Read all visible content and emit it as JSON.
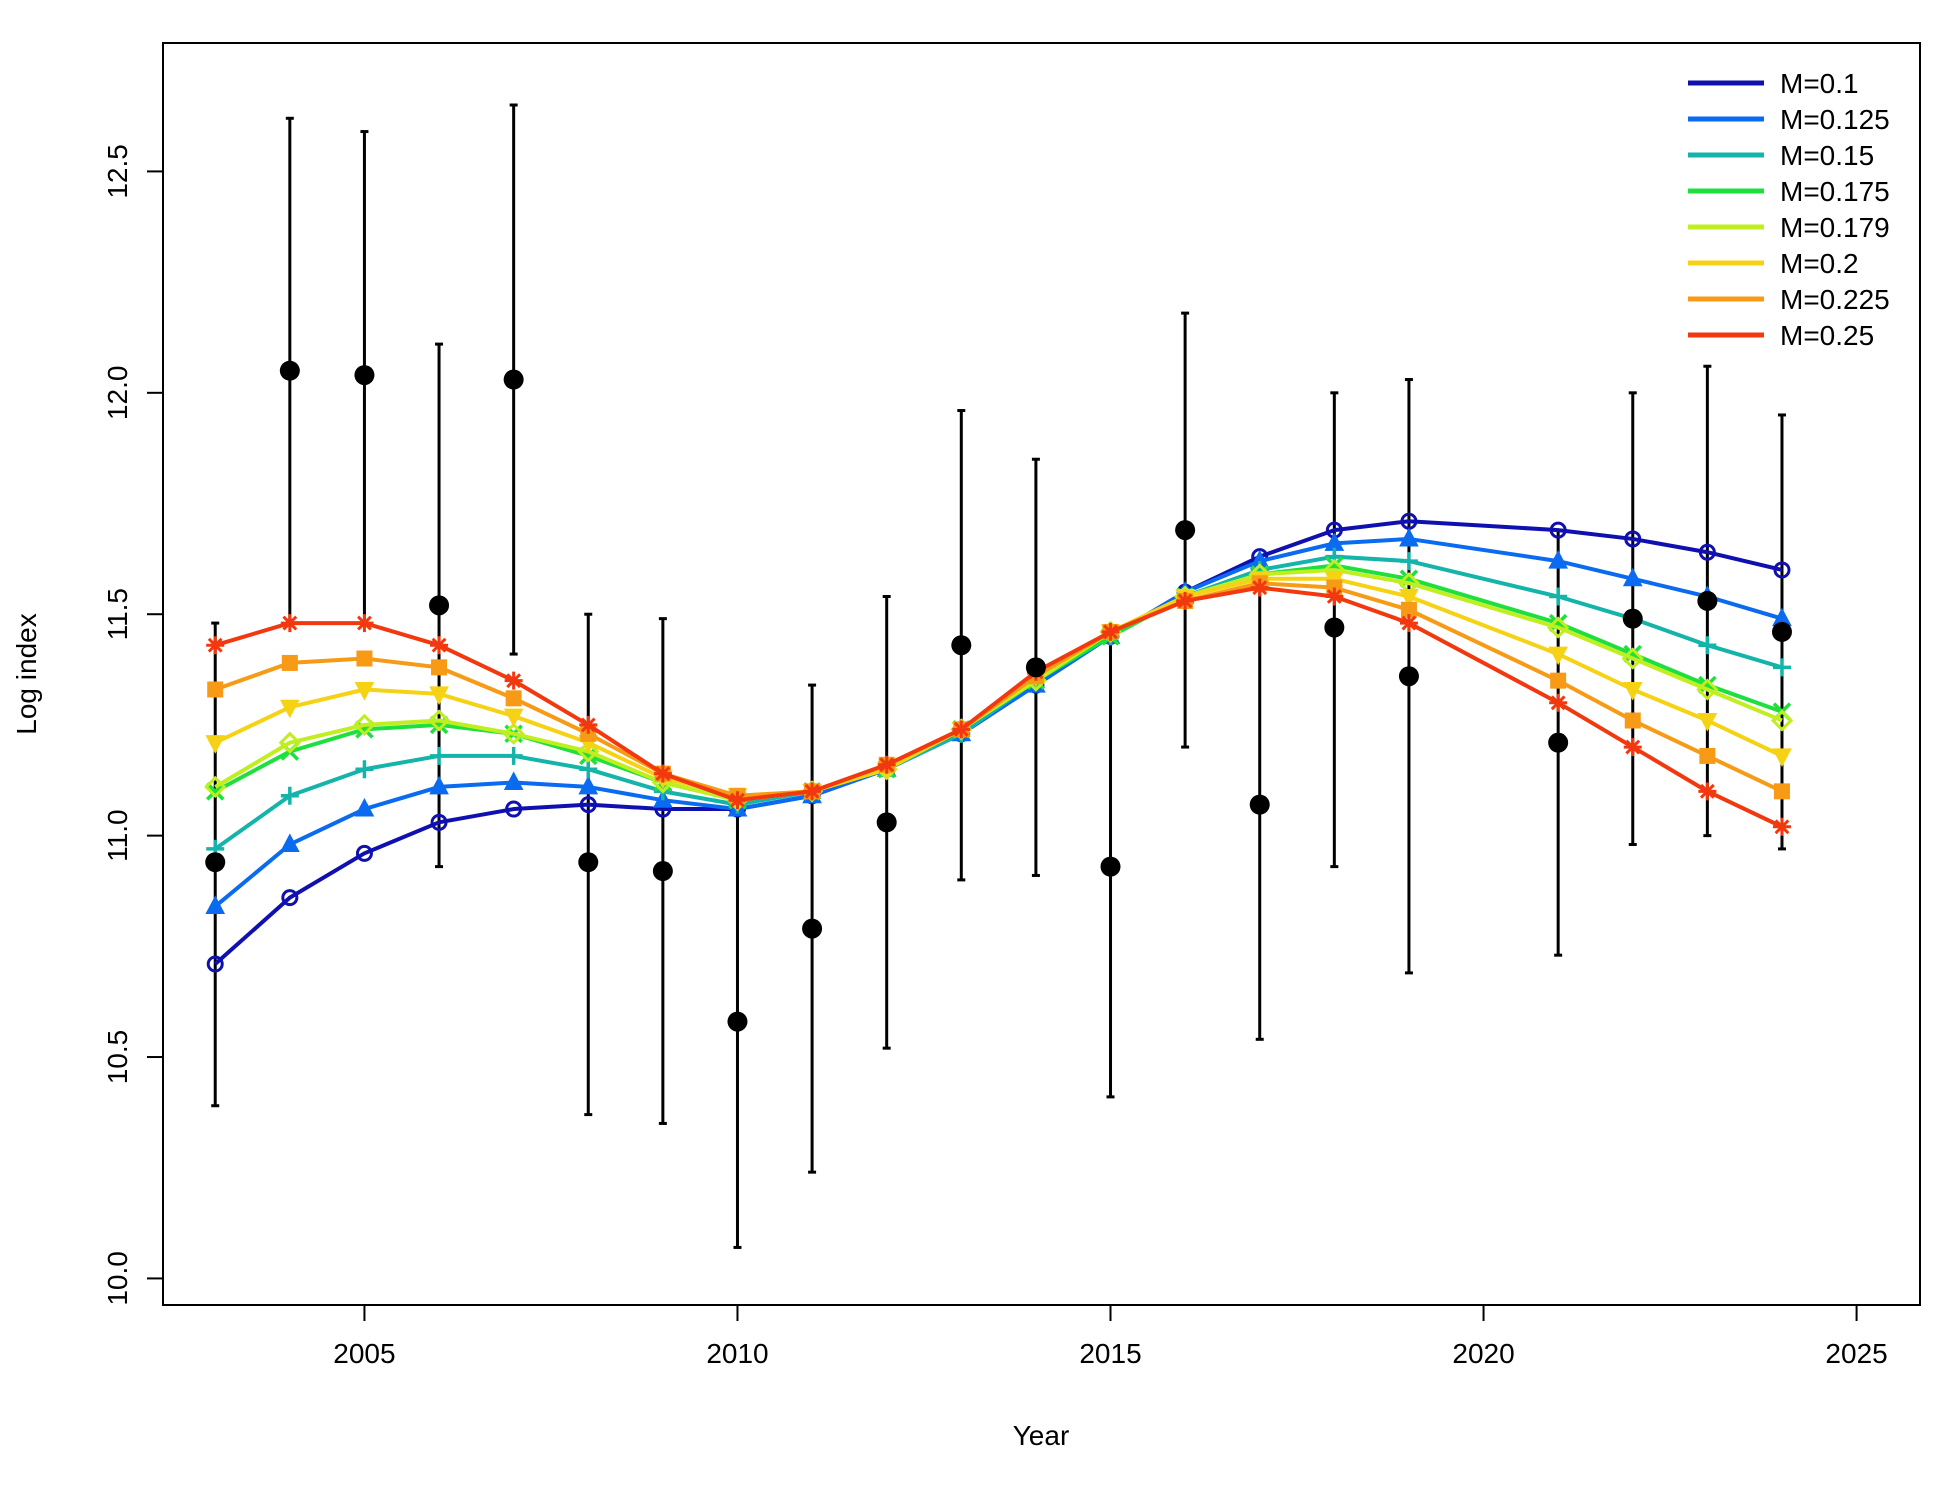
{
  "chart_data": {
    "type": "line",
    "title": "",
    "xlabel": "Year",
    "ylabel": "Log index",
    "xlim": [
      2002.3,
      2025.85
    ],
    "ylim": [
      9.94,
      12.79
    ],
    "xticks": [
      2005,
      2010,
      2015,
      2020,
      2025
    ],
    "yticks": [
      10.0,
      10.5,
      11.0,
      11.5,
      12.0,
      12.5
    ],
    "grid": false,
    "legend_position": "top-right",
    "x": [
      2003,
      2004,
      2005,
      2006,
      2007,
      2008,
      2009,
      2010,
      2011,
      2012,
      2013,
      2014,
      2015,
      2016,
      2017,
      2018,
      2019,
      2021,
      2022,
      2023,
      2024
    ],
    "observed": {
      "values": [
        10.94,
        12.05,
        12.04,
        11.52,
        12.03,
        10.94,
        10.92,
        10.58,
        10.79,
        11.03,
        11.43,
        11.38,
        10.93,
        11.69,
        11.07,
        11.47,
        11.36,
        11.21,
        11.49,
        11.53,
        11.46
      ],
      "lower": [
        10.39,
        11.48,
        11.48,
        10.93,
        11.41,
        10.37,
        10.35,
        10.07,
        10.24,
        10.52,
        10.9,
        10.91,
        10.41,
        11.2,
        10.54,
        10.93,
        10.69,
        10.73,
        10.98,
        11.0,
        10.97
      ],
      "upper": [
        11.48,
        12.62,
        12.59,
        12.11,
        12.65,
        11.5,
        11.49,
        11.09,
        11.34,
        11.54,
        11.96,
        11.85,
        11.44,
        12.18,
        11.6,
        12.0,
        12.03,
        11.69,
        12.0,
        12.06,
        11.95
      ]
    },
    "series": [
      {
        "name": "M=0.1",
        "color": "#1010b0",
        "marker": "circle-open",
        "values": [
          10.71,
          10.86,
          10.96,
          11.03,
          11.06,
          11.07,
          11.06,
          11.06,
          11.09,
          11.15,
          11.23,
          11.34,
          11.45,
          11.55,
          11.63,
          11.69,
          11.71,
          11.69,
          11.67,
          11.64,
          11.6
        ]
      },
      {
        "name": "M=0.125",
        "color": "#0a6af0",
        "marker": "triangle-up",
        "values": [
          10.84,
          10.98,
          11.06,
          11.11,
          11.12,
          11.11,
          11.08,
          11.06,
          11.09,
          11.15,
          11.23,
          11.34,
          11.45,
          11.55,
          11.62,
          11.66,
          11.67,
          11.62,
          11.58,
          11.54,
          11.49
        ]
      },
      {
        "name": "M=0.15",
        "color": "#14b4aa",
        "marker": "plus",
        "values": [
          10.97,
          11.09,
          11.15,
          11.18,
          11.18,
          11.15,
          11.1,
          11.07,
          11.1,
          11.15,
          11.23,
          11.35,
          11.45,
          11.54,
          11.6,
          11.63,
          11.62,
          11.54,
          11.49,
          11.43,
          11.38
        ]
      },
      {
        "name": "M=0.175",
        "color": "#1ee03c",
        "marker": "x",
        "values": [
          11.1,
          11.19,
          11.24,
          11.25,
          11.23,
          11.18,
          11.12,
          11.08,
          11.1,
          11.15,
          11.24,
          11.35,
          11.45,
          11.54,
          11.59,
          11.61,
          11.58,
          11.48,
          11.41,
          11.34,
          11.28
        ]
      },
      {
        "name": "M=0.179",
        "color": "#c0ee1e",
        "marker": "diamond-open",
        "values": [
          11.11,
          11.21,
          11.25,
          11.26,
          11.23,
          11.19,
          11.12,
          11.08,
          11.1,
          11.15,
          11.24,
          11.35,
          11.46,
          11.54,
          11.59,
          11.6,
          11.57,
          11.47,
          11.4,
          11.33,
          11.26
        ]
      },
      {
        "name": "M=0.2",
        "color": "#f5d214",
        "marker": "triangle-down",
        "values": [
          11.21,
          11.29,
          11.33,
          11.32,
          11.27,
          11.21,
          11.13,
          11.09,
          11.1,
          11.15,
          11.24,
          11.36,
          11.46,
          11.54,
          11.58,
          11.58,
          11.54,
          11.41,
          11.33,
          11.26,
          11.18
        ]
      },
      {
        "name": "M=0.225",
        "color": "#f79a16",
        "marker": "square",
        "values": [
          11.33,
          11.39,
          11.4,
          11.38,
          11.31,
          11.23,
          11.14,
          11.09,
          11.1,
          11.16,
          11.24,
          11.36,
          11.46,
          11.53,
          11.57,
          11.56,
          11.51,
          11.35,
          11.26,
          11.18,
          11.1
        ]
      },
      {
        "name": "M=0.25",
        "color": "#f2380f",
        "marker": "asterisk",
        "values": [
          11.43,
          11.48,
          11.48,
          11.43,
          11.35,
          11.25,
          11.14,
          11.08,
          11.1,
          11.16,
          11.24,
          11.37,
          11.46,
          11.53,
          11.56,
          11.54,
          11.48,
          11.3,
          11.2,
          11.1,
          11.02
        ]
      }
    ]
  }
}
